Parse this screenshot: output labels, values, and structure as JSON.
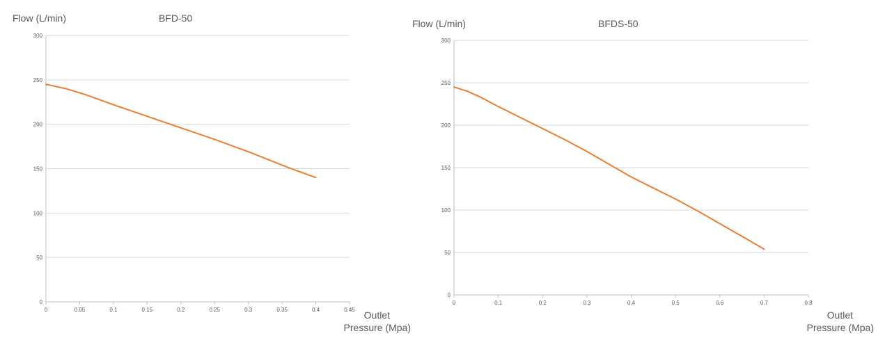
{
  "chart_data": [
    {
      "type": "line",
      "title": "BFD-50",
      "ylabel": "Flow  (L/min)",
      "xlabel_line1": "Outlet",
      "xlabel_line2": "Pressure  (Mpa)",
      "xlim": [
        0,
        0.45
      ],
      "ylim": [
        0,
        300
      ],
      "x_ticks": [
        "0",
        "0.05",
        "0.1",
        "0.15",
        "0.2",
        "0.25",
        "0.3",
        "0.35",
        "0.4",
        "0.45"
      ],
      "y_ticks": [
        "0",
        "50",
        "100",
        "150",
        "200",
        "250",
        "300"
      ],
      "grid": "horizontal",
      "series": [
        {
          "color": "#ED7D31",
          "x": [
            0,
            0.03,
            0.06,
            0.1,
            0.15,
            0.2,
            0.25,
            0.3,
            0.33,
            0.36,
            0.4
          ],
          "y": [
            245,
            240,
            233,
            222,
            209,
            196,
            183,
            169,
            160,
            151,
            140
          ]
        }
      ]
    },
    {
      "type": "line",
      "title": "BFDS-50",
      "ylabel": "Flow  (L/min)",
      "xlabel_line1": "Outlet",
      "xlabel_line2": "Pressure  (Mpa)",
      "xlim": [
        0,
        0.8
      ],
      "ylim": [
        0,
        300
      ],
      "x_ticks": [
        "0",
        "0.1",
        "0.2",
        "0.3",
        "0.4",
        "0.5",
        "0.6",
        "0.7",
        "0.8"
      ],
      "y_ticks": [
        "0",
        "50",
        "100",
        "150",
        "200",
        "250",
        "300"
      ],
      "grid": "horizontal",
      "series": [
        {
          "color": "#ED7D31",
          "x": [
            0,
            0.03,
            0.06,
            0.1,
            0.15,
            0.2,
            0.25,
            0.3,
            0.35,
            0.4,
            0.45,
            0.5,
            0.55,
            0.6,
            0.65,
            0.7
          ],
          "y": [
            245,
            240,
            233,
            222,
            209,
            196,
            183,
            169,
            154,
            139,
            126,
            113,
            99,
            84,
            69,
            54
          ]
        }
      ]
    }
  ]
}
